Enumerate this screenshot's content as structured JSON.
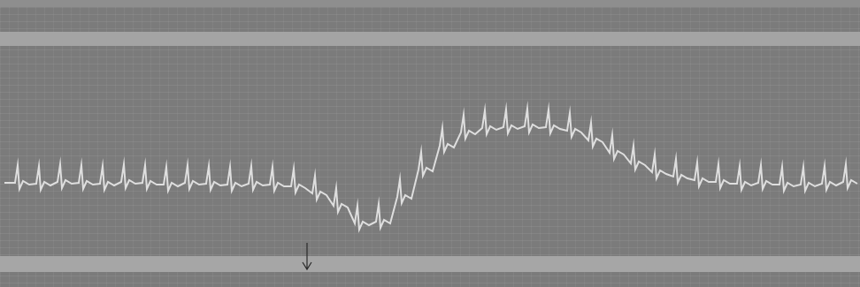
{
  "chart_data": {
    "type": "line",
    "color": "#dedede",
    "grid": false,
    "tick_labels": false,
    "xlim": [
      0,
      972
    ],
    "ylim": [
      0,
      325
    ],
    "events": [
      347
    ],
    "x": [
      5,
      17,
      20,
      22,
      26,
      33,
      41,
      44,
      46,
      50,
      57,
      65,
      68,
      70,
      74,
      81,
      89,
      92,
      94,
      98,
      105,
      113,
      116,
      118,
      122,
      129,
      137,
      140,
      142,
      146,
      153,
      161,
      164,
      166,
      170,
      177,
      185,
      188,
      190,
      194,
      201,
      209,
      212,
      214,
      218,
      225,
      233,
      236,
      238,
      242,
      249,
      257,
      260,
      262,
      266,
      273,
      281,
      284,
      286,
      290,
      297,
      305,
      308,
      310,
      314,
      321,
      329,
      332,
      334,
      338,
      345,
      353,
      356,
      358,
      362,
      369,
      377,
      380,
      382,
      386,
      393,
      401,
      404,
      406,
      410,
      417,
      425,
      428,
      430,
      434,
      441,
      449,
      452,
      454,
      458,
      465,
      473,
      476,
      478,
      482,
      489,
      497,
      500,
      502,
      506,
      513,
      521,
      524,
      526,
      530,
      537,
      545,
      548,
      550,
      554,
      561,
      569,
      572,
      574,
      578,
      585,
      593,
      596,
      598,
      602,
      609,
      617,
      620,
      622,
      626,
      633,
      641,
      644,
      646,
      650,
      657,
      665,
      668,
      670,
      674,
      681,
      689,
      692,
      694,
      698,
      705,
      713,
      716,
      718,
      722,
      729,
      737,
      740,
      742,
      746,
      753,
      761,
      764,
      766,
      770,
      777,
      785,
      788,
      790,
      794,
      801,
      809,
      812,
      814,
      818,
      825,
      833,
      836,
      838,
      842,
      849,
      857,
      860,
      862,
      866,
      873,
      881,
      884,
      886,
      890,
      897,
      905,
      908,
      910,
      914,
      921,
      929,
      932,
      934,
      938,
      945,
      953,
      956,
      958,
      962,
      969
    ],
    "values": [
      118,
      118,
      138,
      111,
      120,
      116,
      117,
      137,
      110,
      119,
      115,
      119,
      139,
      112,
      121,
      117,
      118,
      138,
      111,
      120,
      116,
      117,
      137,
      110,
      119,
      115,
      119,
      139,
      112,
      121,
      117,
      118,
      138,
      111,
      120,
      116,
      116,
      136,
      109,
      118,
      114,
      118,
      138,
      111,
      120,
      116,
      117,
      137,
      110,
      119,
      115,
      116,
      136,
      109,
      118,
      114,
      117,
      137,
      110,
      119,
      115,
      116,
      136,
      109,
      118,
      114,
      114,
      134,
      107,
      116,
      112,
      106,
      126,
      99,
      108,
      104,
      92,
      112,
      85,
      94,
      90,
      72,
      92,
      65,
      74,
      70,
      74,
      94,
      67,
      76,
      72,
      102,
      122,
      95,
      104,
      100,
      133,
      153,
      126,
      135,
      131,
      160,
      180,
      153,
      162,
      158,
      175,
      195,
      168,
      177,
      173,
      180,
      200,
      173,
      182,
      178,
      181,
      201,
      174,
      183,
      179,
      182,
      202,
      175,
      184,
      180,
      181,
      201,
      174,
      183,
      179,
      177,
      197,
      170,
      179,
      175,
      166,
      186,
      159,
      168,
      164,
      152,
      172,
      145,
      154,
      150,
      140,
      160,
      133,
      142,
      138,
      130,
      150,
      123,
      132,
      128,
      125,
      145,
      118,
      127,
      123,
      121,
      141,
      114,
      123,
      119,
      119,
      139,
      112,
      121,
      117,
      117,
      137,
      110,
      119,
      115,
      118,
      138,
      111,
      120,
      116,
      116,
      136,
      109,
      118,
      114,
      116,
      136,
      109,
      118,
      114,
      117,
      137,
      110,
      119,
      115,
      119,
      139,
      112,
      121,
      117
    ]
  }
}
